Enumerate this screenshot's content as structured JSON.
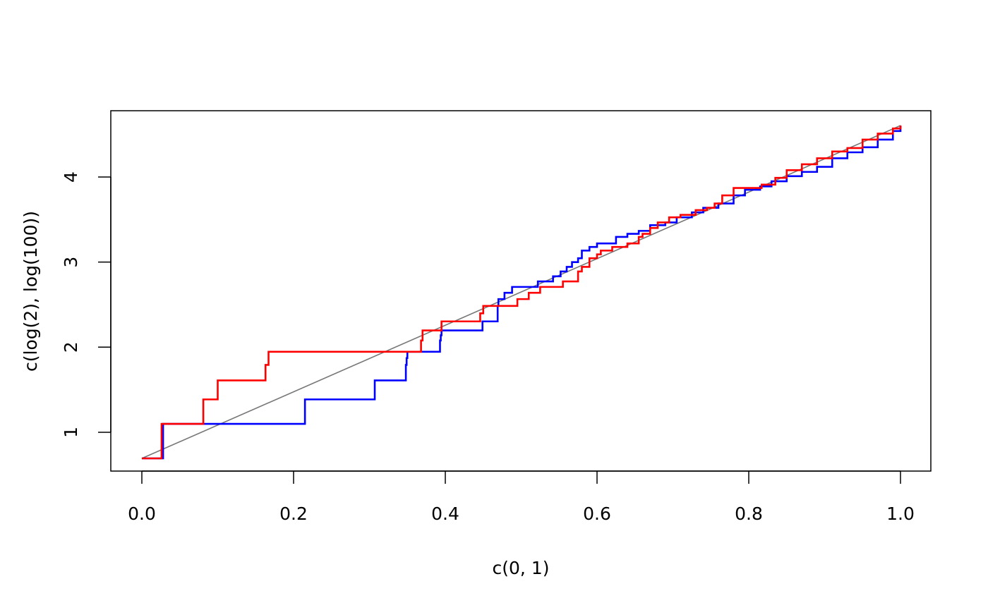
{
  "chart_data": {
    "type": "line",
    "title": "",
    "xlabel": "c(0, 1)",
    "ylabel": "c(log(2), log(100))",
    "xlim": [
      0,
      1
    ],
    "ylim": [
      0.693,
      4.605
    ],
    "x_ticks": [
      0,
      0.2,
      0.4,
      0.6,
      0.8,
      1
    ],
    "x_tick_labels": [
      "0.0",
      "0.2",
      "0.4",
      "0.6",
      "0.8",
      "1.0"
    ],
    "y_ticks": [
      1,
      2,
      3,
      4
    ],
    "y_tick_labels": [
      "1",
      "2",
      "3",
      "4"
    ],
    "grid": false,
    "colors": {
      "reference": "#777777",
      "series_a": "#0000ff",
      "series_b": "#ff0000"
    },
    "reference_line": {
      "color": "#777777",
      "x": [
        0,
        1
      ],
      "y": [
        0.693,
        4.605
      ]
    },
    "series": [
      {
        "color": "#0000ff",
        "step": true,
        "x": [
          0,
          0.028,
          0.215,
          0.307,
          0.348,
          0.349,
          0.35,
          0.393,
          0.394,
          0.395,
          0.449,
          0.469,
          0.47,
          0.471,
          0.478,
          0.488,
          0.522,
          0.542,
          0.552,
          0.56,
          0.567,
          0.575,
          0.58,
          0.59,
          0.6,
          0.625,
          0.64,
          0.655,
          0.67,
          0.69,
          0.705,
          0.725,
          0.74,
          0.76,
          0.78,
          0.795,
          0.815,
          0.83,
          0.85,
          0.87,
          0.89,
          0.91,
          0.93,
          0.95,
          0.97,
          0.99,
          1.0
        ],
        "y": [
          0.693,
          1.099,
          1.386,
          1.609,
          1.792,
          1.872,
          1.946,
          2.079,
          2.14,
          2.197,
          2.303,
          2.485,
          2.565,
          2.565,
          2.639,
          2.708,
          2.773,
          2.833,
          2.89,
          2.944,
          3.0,
          3.045,
          3.135,
          3.178,
          3.219,
          3.296,
          3.332,
          3.367,
          3.434,
          3.466,
          3.526,
          3.584,
          3.638,
          3.689,
          3.784,
          3.85,
          3.89,
          3.95,
          4.01,
          4.06,
          4.12,
          4.22,
          4.29,
          4.35,
          4.44,
          4.54,
          4.605
        ]
      },
      {
        "color": "#ff0000",
        "step": true,
        "x": [
          0,
          0.026,
          0.081,
          0.1,
          0.163,
          0.167,
          0.368,
          0.37,
          0.395,
          0.446,
          0.45,
          0.495,
          0.51,
          0.525,
          0.555,
          0.575,
          0.58,
          0.59,
          0.6,
          0.605,
          0.62,
          0.64,
          0.655,
          0.66,
          0.67,
          0.68,
          0.695,
          0.71,
          0.73,
          0.745,
          0.755,
          0.765,
          0.78,
          0.817,
          0.835,
          0.85,
          0.87,
          0.89,
          0.91,
          0.93,
          0.95,
          0.97,
          0.99,
          1.0
        ],
        "y": [
          0.693,
          1.099,
          1.386,
          1.609,
          1.792,
          1.946,
          2.079,
          2.197,
          2.303,
          2.398,
          2.485,
          2.565,
          2.639,
          2.708,
          2.773,
          2.89,
          2.944,
          3.045,
          3.091,
          3.135,
          3.178,
          3.219,
          3.296,
          3.332,
          3.401,
          3.466,
          3.526,
          3.555,
          3.611,
          3.638,
          3.689,
          3.784,
          3.871,
          3.91,
          3.99,
          4.08,
          4.15,
          4.22,
          4.3,
          4.34,
          4.44,
          4.51,
          4.57,
          4.605
        ]
      }
    ]
  }
}
